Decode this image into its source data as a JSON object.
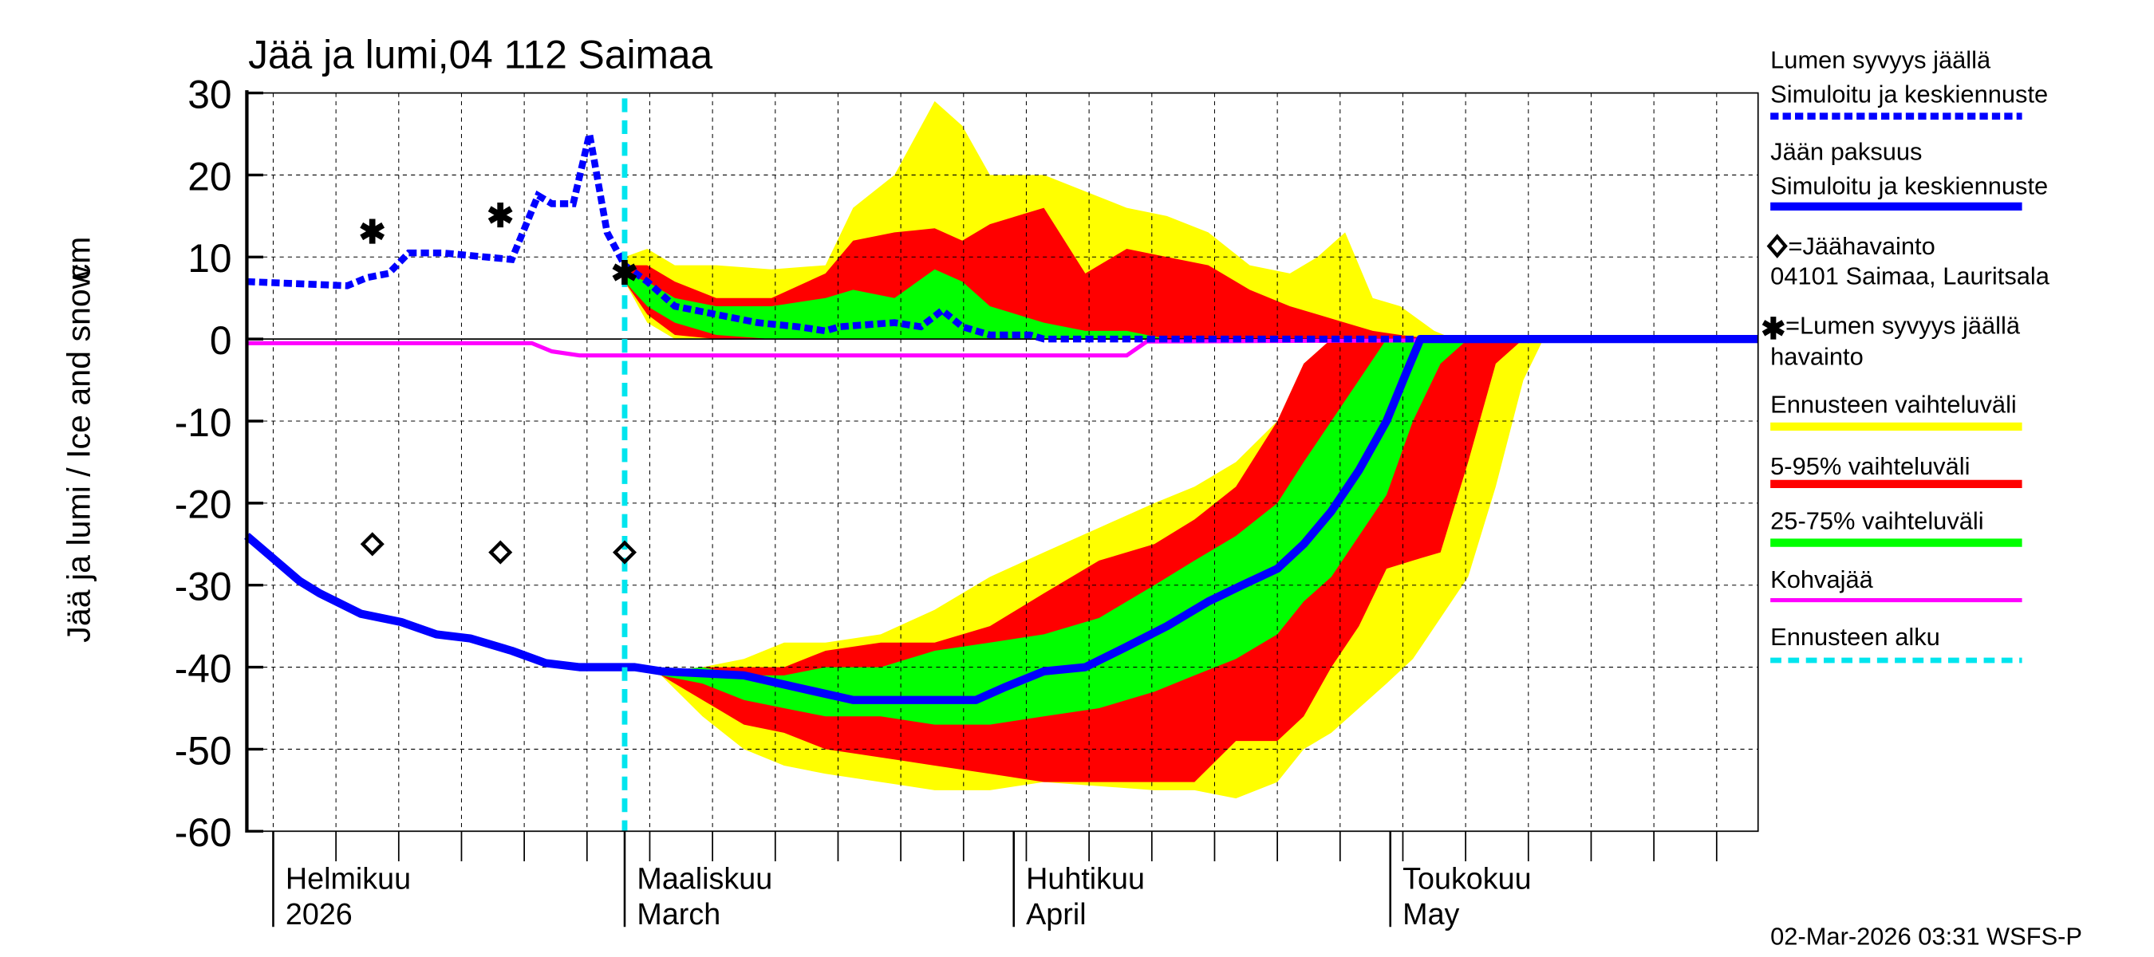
{
  "chart_data": {
    "type": "area",
    "title": "Jää ja lumi,04 112 Saimaa",
    "ylabel": "Jää ja lumi / Ice and snow",
    "yunit": "cm",
    "ylim": [
      -60,
      30
    ],
    "yticks": [
      30,
      20,
      10,
      0,
      -10,
      -20,
      -30,
      -40,
      -50,
      -60
    ],
    "x_unit": "days since 2026-02-01",
    "xlim": [
      -2.1,
      118.3
    ],
    "grid": true,
    "forecast_start_day": 28.0,
    "months": [
      {
        "day": 0,
        "fi": "Helmikuu",
        "en": "2026"
      },
      {
        "day": 28,
        "fi": "Maaliskuu",
        "en": "March"
      },
      {
        "day": 59,
        "fi": "Huhtikuu",
        "en": "April"
      },
      {
        "day": 89,
        "fi": "Toukokuu",
        "en": "May"
      }
    ],
    "snow_simulated": {
      "x": [
        -2.1,
        5.9,
        7.5,
        9.2,
        10.8,
        13.5,
        19.0,
        21.1,
        22.2,
        23.9,
        25.2,
        26.6,
        28.0,
        29.8,
        32.0,
        35.3,
        38.6,
        41.8,
        44.0,
        45.1,
        49.5,
        51.6,
        53.3,
        54.9,
        57.1,
        60.3,
        61.4,
        118.3
      ],
      "y": [
        7,
        6.5,
        7.5,
        8,
        10.5,
        10.5,
        9.7,
        17.5,
        16.5,
        16.5,
        25,
        13,
        9,
        7,
        4,
        3,
        2,
        1.5,
        1,
        1.5,
        2,
        1.5,
        3.5,
        1.5,
        0.5,
        0.5,
        0,
        0
      ]
    },
    "ice_simulated": {
      "x": [
        -2.1,
        2.1,
        3.7,
        7.0,
        10.2,
        13.0,
        15.7,
        19.0,
        21.7,
        24.4,
        28.8,
        30.9,
        37.5,
        41.8,
        46.2,
        49.5,
        56.0,
        58.2,
        61.4,
        64.7,
        68.0,
        71.2,
        74.5,
        77.2,
        80.0,
        82.1,
        84.3,
        86.5,
        88.7,
        90.3,
        91.4,
        118.3
      ],
      "y": [
        -24,
        -29.5,
        -31,
        -33.5,
        -34.5,
        -36,
        -36.5,
        -38,
        -39.5,
        -40,
        -40,
        -40.5,
        -41,
        -42.5,
        -44,
        -44,
        -44,
        -42.5,
        -40.5,
        -40,
        -37.5,
        -35,
        -32,
        -30,
        -28,
        -25,
        -21,
        -16,
        -10,
        -4,
        0,
        0
      ]
    },
    "slush_ice": {
      "x": [
        -2.1,
        20.6,
        22.2,
        24.4,
        68.0,
        69.6,
        118.3
      ],
      "y": [
        -0.5,
        -0.5,
        -1.5,
        -2,
        -2,
        -0.3,
        0
      ]
    },
    "snow_bands": {
      "x": [
        28.0,
        29.8,
        32.0,
        35.3,
        39.7,
        44.0,
        46.2,
        49.5,
        52.7,
        54.9,
        57.1,
        61.4,
        64.7,
        68.0,
        71.2,
        74.5,
        77.8,
        81.0,
        83.2,
        85.4,
        87.6,
        89.8,
        92.5,
        94.1
      ],
      "yellow_upper": [
        10,
        11,
        9,
        9,
        8.5,
        9,
        16,
        20,
        29,
        26,
        20,
        20,
        18,
        16,
        15,
        13,
        9,
        8,
        10,
        13,
        5,
        4,
        1,
        0
      ],
      "red_upper": [
        9,
        9,
        7,
        5,
        5,
        8,
        12,
        13,
        13.5,
        12,
        14,
        16,
        8,
        11,
        10,
        9,
        6,
        4,
        3,
        2,
        1,
        0.5,
        0,
        0
      ],
      "green_upper": [
        8,
        7,
        5,
        4,
        4,
        5,
        6,
        5,
        8.5,
        7,
        4,
        2,
        1,
        1,
        0,
        0,
        0,
        0,
        0,
        0,
        0,
        0,
        0,
        0
      ],
      "green_lower": [
        7,
        4,
        2,
        0.5,
        0,
        0,
        0,
        0,
        0,
        0,
        0,
        0,
        0,
        0,
        0,
        0,
        0,
        0,
        0,
        0,
        0,
        0,
        0,
        0
      ],
      "red_lower": [
        7,
        3,
        0.5,
        0,
        0,
        0,
        0,
        0,
        0,
        0,
        0,
        0,
        0,
        0,
        0,
        0,
        0,
        0,
        0,
        0,
        0,
        0,
        0,
        0
      ],
      "yellow_lower": [
        7,
        2,
        0,
        0,
        0,
        0,
        0,
        0,
        0,
        0,
        0,
        0,
        0,
        0,
        0,
        0,
        0,
        0,
        0,
        0,
        0,
        0,
        0,
        0
      ]
    },
    "ice_bands": {
      "x": [
        28.0,
        30.9,
        34.2,
        37.5,
        40.7,
        44.0,
        48.4,
        52.7,
        57.1,
        61.4,
        65.8,
        70.2,
        73.4,
        76.7,
        80.0,
        82.1,
        84.3,
        86.5,
        88.7,
        90.8,
        93.0,
        95.2,
        97.4,
        99.6,
        101.2
      ],
      "yellow_upper": [
        -40,
        -40.5,
        -40,
        -39,
        -37,
        -37,
        -36,
        -33,
        -29,
        -26,
        -23,
        -20,
        -18,
        -15,
        -10,
        -3,
        0,
        0,
        0,
        0,
        0,
        0,
        0,
        0,
        0
      ],
      "red_upper": [
        -40,
        -40.5,
        -40,
        -40,
        -40,
        -38,
        -37,
        -37,
        -35,
        -31,
        -27,
        -25,
        -22,
        -18,
        -10,
        -3,
        0,
        0,
        0,
        0,
        0,
        0,
        0,
        0,
        0
      ],
      "green_upper": [
        -40,
        -40.5,
        -40,
        -41,
        -41,
        -40,
        -40,
        -38,
        -37,
        -36,
        -34,
        -30,
        -27,
        -24,
        -20,
        -15,
        -10,
        -5,
        0,
        0,
        0,
        0,
        0,
        0,
        0
      ],
      "green_lower": [
        -40,
        -41,
        -42,
        -44,
        -45,
        -46,
        -46,
        -47,
        -47,
        -46,
        -45,
        -43,
        -41,
        -39,
        -36,
        -32,
        -29,
        -24,
        -19,
        -10,
        -3,
        0,
        0,
        0,
        0
      ],
      "red_lower": [
        -40,
        -41,
        -44,
        -47,
        -48,
        -50,
        -51,
        -52,
        -53,
        -54,
        -54,
        -54,
        -54,
        -49,
        -49,
        -46,
        -40,
        -35,
        -28,
        -27,
        -26,
        -15,
        -3,
        0,
        0
      ],
      "yellow_lower": [
        -40,
        -41,
        -46,
        -50,
        -52,
        -53,
        -54,
        -55,
        -55,
        -54,
        -54.5,
        -55,
        -55,
        -56,
        -54,
        -50,
        -48,
        -45,
        -42,
        -39,
        -34,
        -29,
        -18,
        -5,
        0
      ]
    },
    "ice_observations": {
      "x": [
        7.9,
        18.1,
        28.0
      ],
      "y": [
        -25,
        -26,
        -26
      ]
    },
    "snow_observations": {
      "x": [
        7.9,
        18.1,
        28.0
      ],
      "y": [
        13,
        15,
        8
      ]
    },
    "colors": {
      "simulated": "#0000ff",
      "range_full": "#ffff00",
      "range_5_95": "#ff0000",
      "range_25_75": "#00ff00",
      "slush": "#ff00ff",
      "forecast_start": "#00e5ee"
    },
    "legend": {
      "snow_title": "Lumen syvyys jäällä",
      "snow_sub": "Simuloitu ja keskiennuste",
      "ice_title": "Jään paksuus",
      "ice_sub": "Simuloitu ja keskiennuste",
      "ice_obs": "=Jäähavainto",
      "ice_obs_station": "04101 Saimaa, Lauritsala",
      "snow_obs": "=Lumen syvyys jäällä",
      "snow_obs_sub": "havainto",
      "range_full": "Ennusteen vaihteluväli",
      "range_5_95": "5-95% vaihteluväli",
      "range_25_75": "25-75% vaihteluväli",
      "slush": "Kohvajää",
      "forecast_start": "Ennusteen alku"
    },
    "footer": "02-Mar-2026 03:31 WSFS-P"
  }
}
